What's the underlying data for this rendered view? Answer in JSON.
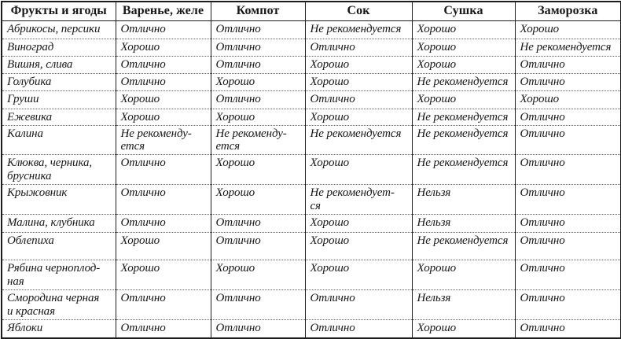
{
  "table": {
    "headers": [
      "Фрукты и ягоды",
      "Варенье, желе",
      "Компот",
      "Сок",
      "Сушка",
      "Заморозка"
    ],
    "rows": [
      {
        "cells": [
          "Абрикосы, персики",
          "Отлично",
          "Отлично",
          "Не рекомендуется",
          "Хорошо",
          "Хорошо"
        ]
      },
      {
        "cells": [
          "Виноград",
          "Хорошо",
          "Отлично",
          "Отлично",
          "Хорошо",
          "Не рекомендуется"
        ]
      },
      {
        "cells": [
          "Вишня, слива",
          "Отлично",
          "Отлично",
          "Хорошо",
          "Хорошо",
          "Отлично"
        ]
      },
      {
        "cells": [
          "Голубика",
          "Отлично",
          "Хорошо",
          "Хорошо",
          "Не рекомендуется",
          "Отлично"
        ]
      },
      {
        "cells": [
          "Груши",
          "Хорошо",
          "Отлично",
          "Отлично",
          "Хорошо",
          "Хорошо"
        ]
      },
      {
        "cells": [
          "Ежевика",
          "Хорошо",
          "Хорошо",
          "Хорошо",
          "Не рекомендуется",
          "Отлично"
        ]
      },
      {
        "cells": [
          "Калина",
          "Не рекоменду-\nется",
          "Не рекоменду-\nется",
          "Не рекомендуется",
          "Не рекомендуется",
          "Отлично"
        ]
      },
      {
        "cells": [
          "Клюква, черника,\nбрусника",
          "Отлично",
          "Хорошо",
          "Хорошо",
          "Не рекомендуется",
          "Отлично"
        ]
      },
      {
        "cells": [
          "Крыжовник",
          "Отлично",
          "Хорошо",
          "Не рекомендует-\nся",
          "Нельзя",
          "Отлично"
        ]
      },
      {
        "cells": [
          "Малина, клубника",
          "Отлично",
          "Отлично",
          "Хорошо",
          "Нельзя",
          "Отлично"
        ]
      },
      {
        "cells": [
          "Облепиха",
          "Хорошо",
          "Отлично",
          "Хорошо",
          "Не рекомендуется",
          "Отлично"
        ]
      },
      {
        "cells": [
          "Рябина черноплод-\nная",
          "Хорошо",
          "Хорошо",
          "Хорошо",
          "Хорошо",
          "Отлично"
        ]
      },
      {
        "cells": [
          "Смородина черная\nи красная",
          "Отлично",
          "Отлично",
          "Отлично",
          "Нельзя",
          "Отлично"
        ]
      },
      {
        "cells": [
          "Яблоки",
          "Отлично",
          "Отлично",
          "Отлично",
          "Хорошо",
          "Отлично"
        ]
      }
    ]
  }
}
